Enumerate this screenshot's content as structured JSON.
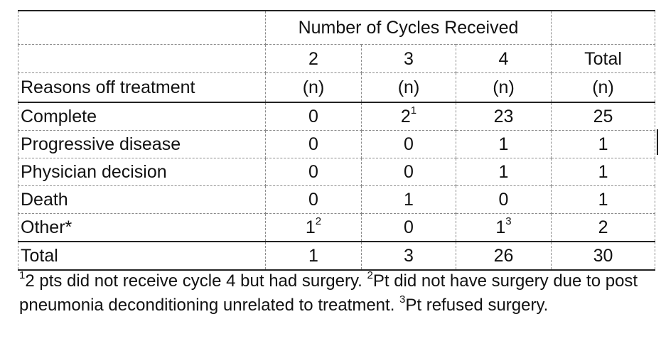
{
  "table": {
    "group_header": "Number of Cycles Received",
    "columns": [
      "2",
      "3",
      "4",
      "Total"
    ],
    "row_header_label": "Reasons off treatment",
    "units": [
      "(n)",
      "(n)",
      "(n)",
      "(n)"
    ],
    "rows": [
      {
        "label": "Complete",
        "cells": [
          {
            "v": "0",
            "sup": ""
          },
          {
            "v": "2",
            "sup": "1"
          },
          {
            "v": "23",
            "sup": ""
          },
          {
            "v": "25",
            "sup": ""
          }
        ]
      },
      {
        "label": "Progressive disease",
        "cells": [
          {
            "v": "0",
            "sup": ""
          },
          {
            "v": "0",
            "sup": ""
          },
          {
            "v": "1",
            "sup": ""
          },
          {
            "v": "1",
            "sup": ""
          }
        ]
      },
      {
        "label": "Physician decision",
        "cells": [
          {
            "v": "0",
            "sup": ""
          },
          {
            "v": "0",
            "sup": ""
          },
          {
            "v": "1",
            "sup": ""
          },
          {
            "v": "1",
            "sup": ""
          }
        ]
      },
      {
        "label": "Death",
        "cells": [
          {
            "v": "0",
            "sup": ""
          },
          {
            "v": "1",
            "sup": ""
          },
          {
            "v": "0",
            "sup": ""
          },
          {
            "v": "1",
            "sup": ""
          }
        ]
      },
      {
        "label": "Other*",
        "cells": [
          {
            "v": "1",
            "sup": "2"
          },
          {
            "v": "0",
            "sup": ""
          },
          {
            "v": "1",
            "sup": "3"
          },
          {
            "v": "2",
            "sup": ""
          }
        ]
      }
    ],
    "total": {
      "label": "Total",
      "cells": [
        "1",
        "3",
        "26",
        "30"
      ]
    }
  },
  "footnotes": {
    "f1_mark": "1",
    "f1_text": "2 pts did not receive cycle 4 but had surgery.  ",
    "f2_mark": "2",
    "f2_text": "Pt did not have surgery due to post pneumonia deconditioning unrelated to treatment. ",
    "f3_mark": "3",
    "f3_text": "Pt refused surgery."
  }
}
